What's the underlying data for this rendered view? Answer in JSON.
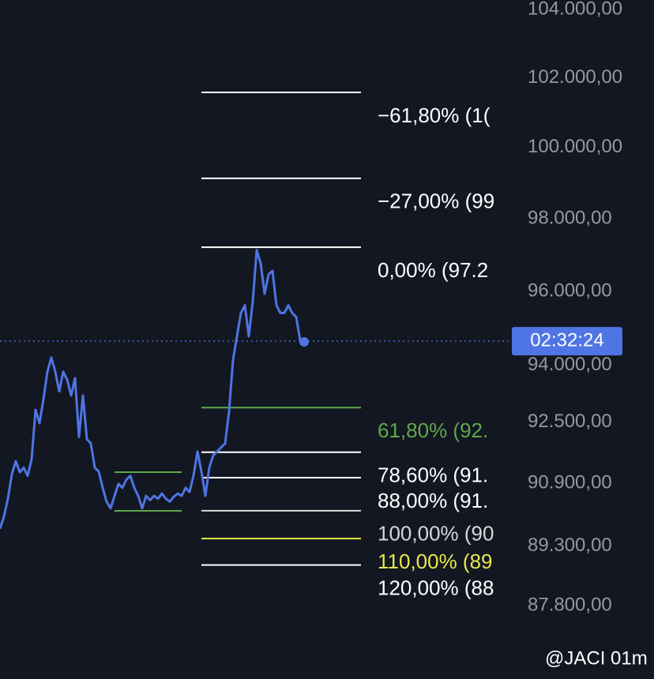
{
  "chart_data": {
    "type": "line",
    "log_scale": true,
    "ylim": [
      85990,
      104280
    ],
    "yticks": [
      {
        "value": 104000,
        "label": "104.000,00"
      },
      {
        "value": 102000,
        "label": "102.000,00"
      },
      {
        "value": 100000,
        "label": "100.000,00"
      },
      {
        "value": 98000,
        "label": "98.000,00"
      },
      {
        "value": 96000,
        "label": "96.000,00"
      },
      {
        "value": 94000,
        "label": "94.000,00"
      },
      {
        "value": 92500,
        "label": "92.500,00"
      },
      {
        "value": 90900,
        "label": "90.900,00"
      },
      {
        "value": 89300,
        "label": "89.300,00"
      },
      {
        "value": 87800,
        "label": "87.800,00"
      }
    ],
    "series": [
      {
        "color": "#4f74e3",
        "values": [
          89740,
          90050,
          90510,
          91140,
          91480,
          91190,
          91310,
          91100,
          91520,
          92820,
          92470,
          93100,
          93830,
          94210,
          93830,
          93310,
          93830,
          93620,
          93200,
          93660,
          92110,
          93200,
          92050,
          91940,
          91310,
          91210,
          90790,
          90430,
          90260,
          90580,
          90890,
          90790,
          91000,
          91100,
          90790,
          90580,
          90260,
          90580,
          90470,
          90580,
          90510,
          90640,
          90510,
          90430,
          90560,
          90640,
          90580,
          90790,
          90680,
          91100,
          91730,
          91210,
          90580,
          91310,
          91630,
          91730,
          91840,
          91940,
          92780,
          94150,
          94780,
          95410,
          95620,
          94780,
          95720,
          97130,
          96770,
          95930,
          96460,
          96560,
          95620,
          95410,
          95410,
          95620,
          95410,
          95300,
          94670,
          94630
        ]
      }
    ],
    "fib_levels": [
      {
        "value": 101580,
        "label": "−61,80% (1(",
        "color": "#ffffff"
      },
      {
        "value": 99130,
        "label": "−27,00% (99",
        "color": "#ffffff"
      },
      {
        "value": 97210,
        "label": "0,00% (97.2",
        "color": "#ffffff"
      },
      {
        "value": 92880,
        "label": "61,80% (92.",
        "color": "#5fa84a"
      },
      {
        "value": 91710,
        "label": "78,60% (91.",
        "color": "#ffffff"
      },
      {
        "value": 91050,
        "label": "88,00% (91.",
        "color": "#ffffff"
      },
      {
        "value": 90200,
        "label": "100,00% (90",
        "color": "#d8d8d8"
      },
      {
        "value": 89490,
        "label": "110,00% (89",
        "color": "#e8e84a"
      },
      {
        "value": 88820,
        "label": "120,00% (88",
        "color": "#ffffff"
      }
    ],
    "last_price": {
      "value": 94650,
      "label": "02:32:24",
      "color": "#4f74e3"
    },
    "watermark": "@JACI 01m"
  }
}
